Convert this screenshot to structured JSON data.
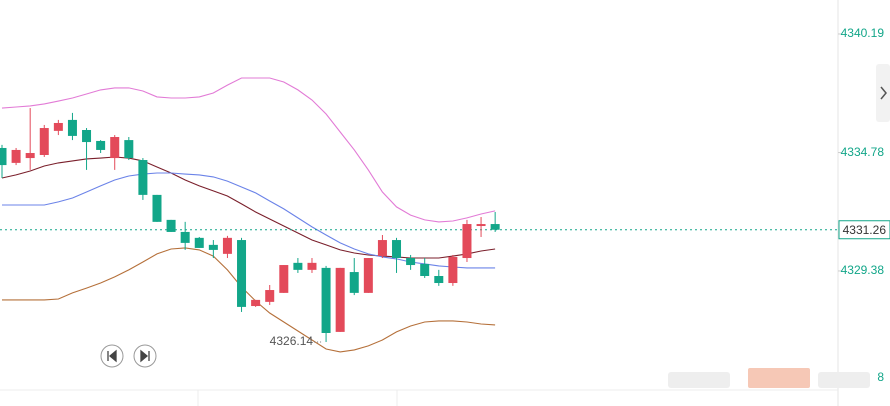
{
  "chart_data": {
    "type": "candlestick",
    "up_color": "#e34a5a",
    "down_color": "#12a689",
    "ylim": [
      4323.22,
      4341.74
    ],
    "yticks": [
      4340.19,
      4334.78,
      4329.38
    ],
    "clipped_tick_label": "8",
    "current_price": {
      "value": 4331.26,
      "label": "4331.26",
      "color": "#12a689"
    },
    "low_label": {
      "value": 4326.14,
      "label": "4326.14"
    },
    "open": [
      4334.99,
      4334.31,
      4334.53,
      4334.67,
      4335.77,
      4336.27,
      4335.81,
      4335.31,
      4334.53,
      4335.35,
      4334.44,
      4332.85,
      4331.71,
      4331.16,
      4330.89,
      4330.57,
      4330.16,
      4330.79,
      4327.78,
      4327.97,
      4328.38,
      4329.75,
      4329.43,
      4329.52,
      4326.6,
      4329.33,
      4328.38,
      4330.06,
      4330.79,
      4329.97,
      4329.7,
      4329.15,
      4328.83,
      4329.97,
      4331.43,
      4331.52
    ],
    "high": [
      4335.13,
      4334.99,
      4336.81,
      4336.04,
      4336.27,
      4336.59,
      4335.9,
      4335.35,
      4335.58,
      4335.49,
      4334.53,
      4332.85,
      4331.71,
      4331.62,
      4330.93,
      4330.79,
      4330.98,
      4330.89,
      4328.06,
      4328.74,
      4329.65,
      4329.97,
      4329.97,
      4329.61,
      4329.52,
      4329.97,
      4329.97,
      4331.02,
      4330.89,
      4330.11,
      4329.97,
      4329.43,
      4330.11,
      4331.71,
      4331.84,
      4332.07
    ],
    "low": [
      4333.62,
      4334.21,
      4333.99,
      4334.58,
      4335.58,
      4335.35,
      4333.99,
      4334.76,
      4333.99,
      4334.44,
      4332.62,
      4331.62,
      4331.16,
      4330.34,
      4330.43,
      4329.97,
      4329.97,
      4327.51,
      4327.74,
      4327.83,
      4328.38,
      4329.29,
      4329.29,
      4326.14,
      4326.6,
      4328.28,
      4328.38,
      4329.97,
      4329.29,
      4329.43,
      4329.06,
      4328.7,
      4328.7,
      4329.79,
      4330.93,
      4331.16
    ],
    "close": [
      4334.21,
      4334.9,
      4334.76,
      4335.9,
      4336.13,
      4335.54,
      4335.26,
      4334.9,
      4335.49,
      4334.53,
      4332.85,
      4331.62,
      4331.16,
      4330.66,
      4330.43,
      4330.34,
      4330.89,
      4327.74,
      4328.06,
      4328.51,
      4329.65,
      4329.43,
      4329.75,
      4326.55,
      4329.52,
      4328.38,
      4329.97,
      4330.79,
      4329.97,
      4329.65,
      4329.15,
      4328.83,
      4330.02,
      4331.52,
      4331.52,
      4331.26
    ],
    "lines": [
      {
        "color": "#e27bd6",
        "values": [
          4336.81,
          4336.86,
          4336.91,
          4337.0,
          4337.13,
          4337.27,
          4337.45,
          4337.64,
          4337.73,
          4337.73,
          4337.59,
          4337.32,
          4337.27,
          4337.27,
          4337.32,
          4337.5,
          4337.86,
          4338.18,
          4338.18,
          4338.18,
          4338.0,
          4337.64,
          4337.18,
          4336.54,
          4335.72,
          4334.9,
          4333.99,
          4332.98,
          4332.3,
          4331.93,
          4331.71,
          4331.62,
          4331.66,
          4331.8,
          4331.98,
          4332.12
        ]
      },
      {
        "color": "#7a1f2b",
        "values": [
          4333.62,
          4333.76,
          4333.94,
          4334.17,
          4334.31,
          4334.4,
          4334.49,
          4334.53,
          4334.58,
          4334.53,
          4334.4,
          4334.12,
          4333.85,
          4333.53,
          4333.26,
          4333.03,
          4332.8,
          4332.44,
          4332.07,
          4331.75,
          4331.43,
          4331.11,
          4330.79,
          4330.57,
          4330.34,
          4330.2,
          4330.11,
          4330.06,
          4330.02,
          4329.97,
          4329.97,
          4329.97,
          4330.06,
          4330.16,
          4330.29,
          4330.38
        ]
      },
      {
        "color": "#6b83e8",
        "values": [
          4332.39,
          4332.39,
          4332.39,
          4332.39,
          4332.53,
          4332.71,
          4332.98,
          4333.26,
          4333.53,
          4333.71,
          4333.8,
          4333.85,
          4333.85,
          4333.8,
          4333.76,
          4333.67,
          4333.48,
          4333.21,
          4332.94,
          4332.57,
          4332.21,
          4331.8,
          4331.39,
          4331.02,
          4330.66,
          4330.38,
          4330.16,
          4330.02,
          4329.93,
          4329.79,
          4329.7,
          4329.61,
          4329.56,
          4329.52,
          4329.52,
          4329.52
        ]
      },
      {
        "color": "#b5703a",
        "values": [
          4328.06,
          4328.06,
          4328.06,
          4328.06,
          4328.1,
          4328.38,
          4328.6,
          4328.83,
          4329.11,
          4329.43,
          4329.79,
          4330.16,
          4330.38,
          4330.43,
          4330.34,
          4330.06,
          4329.43,
          4328.65,
          4328.01,
          4327.46,
          4327.05,
          4326.64,
          4326.23,
          4325.82,
          4325.69,
          4325.78,
          4325.96,
          4326.23,
          4326.6,
          4326.87,
          4327.05,
          4327.1,
          4327.1,
          4327.05,
          4326.96,
          4326.92
        ]
      }
    ]
  }
}
